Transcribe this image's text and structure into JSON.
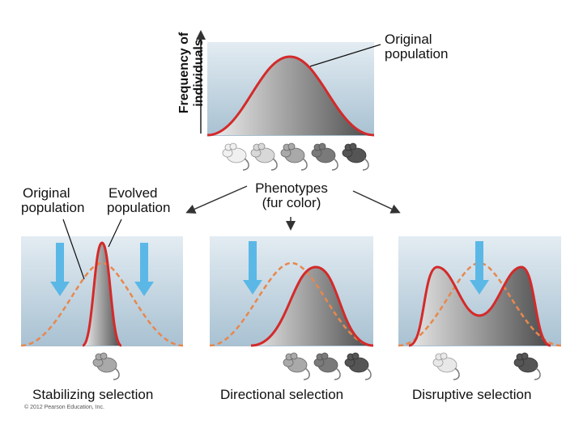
{
  "y_axis_label_line1": "Frequency of",
  "y_axis_label_line2": "individuals",
  "original_population_label_line1": "Original",
  "original_population_label_line2": "population",
  "phenotypes_label_line1": "Phenotypes",
  "phenotypes_label_line2": "(fur color)",
  "stabilizing": {
    "original_label_line1": "Original",
    "original_label_line2": "population",
    "evolved_label_line1": "Evolved",
    "evolved_label_line2": "population",
    "caption": "Stabilizing selection"
  },
  "directional_caption": "Directional selection",
  "disruptive_caption": "Disruptive selection",
  "copyright": "© 2012 Pearson Education, Inc.",
  "colors": {
    "panel_top": "#dde7ee",
    "panel_bottom": "#a9c2d3",
    "curve_red": "#d42a2a",
    "dashed_orange": "#e8874d",
    "arrow_blue": "#5bb8e6"
  }
}
